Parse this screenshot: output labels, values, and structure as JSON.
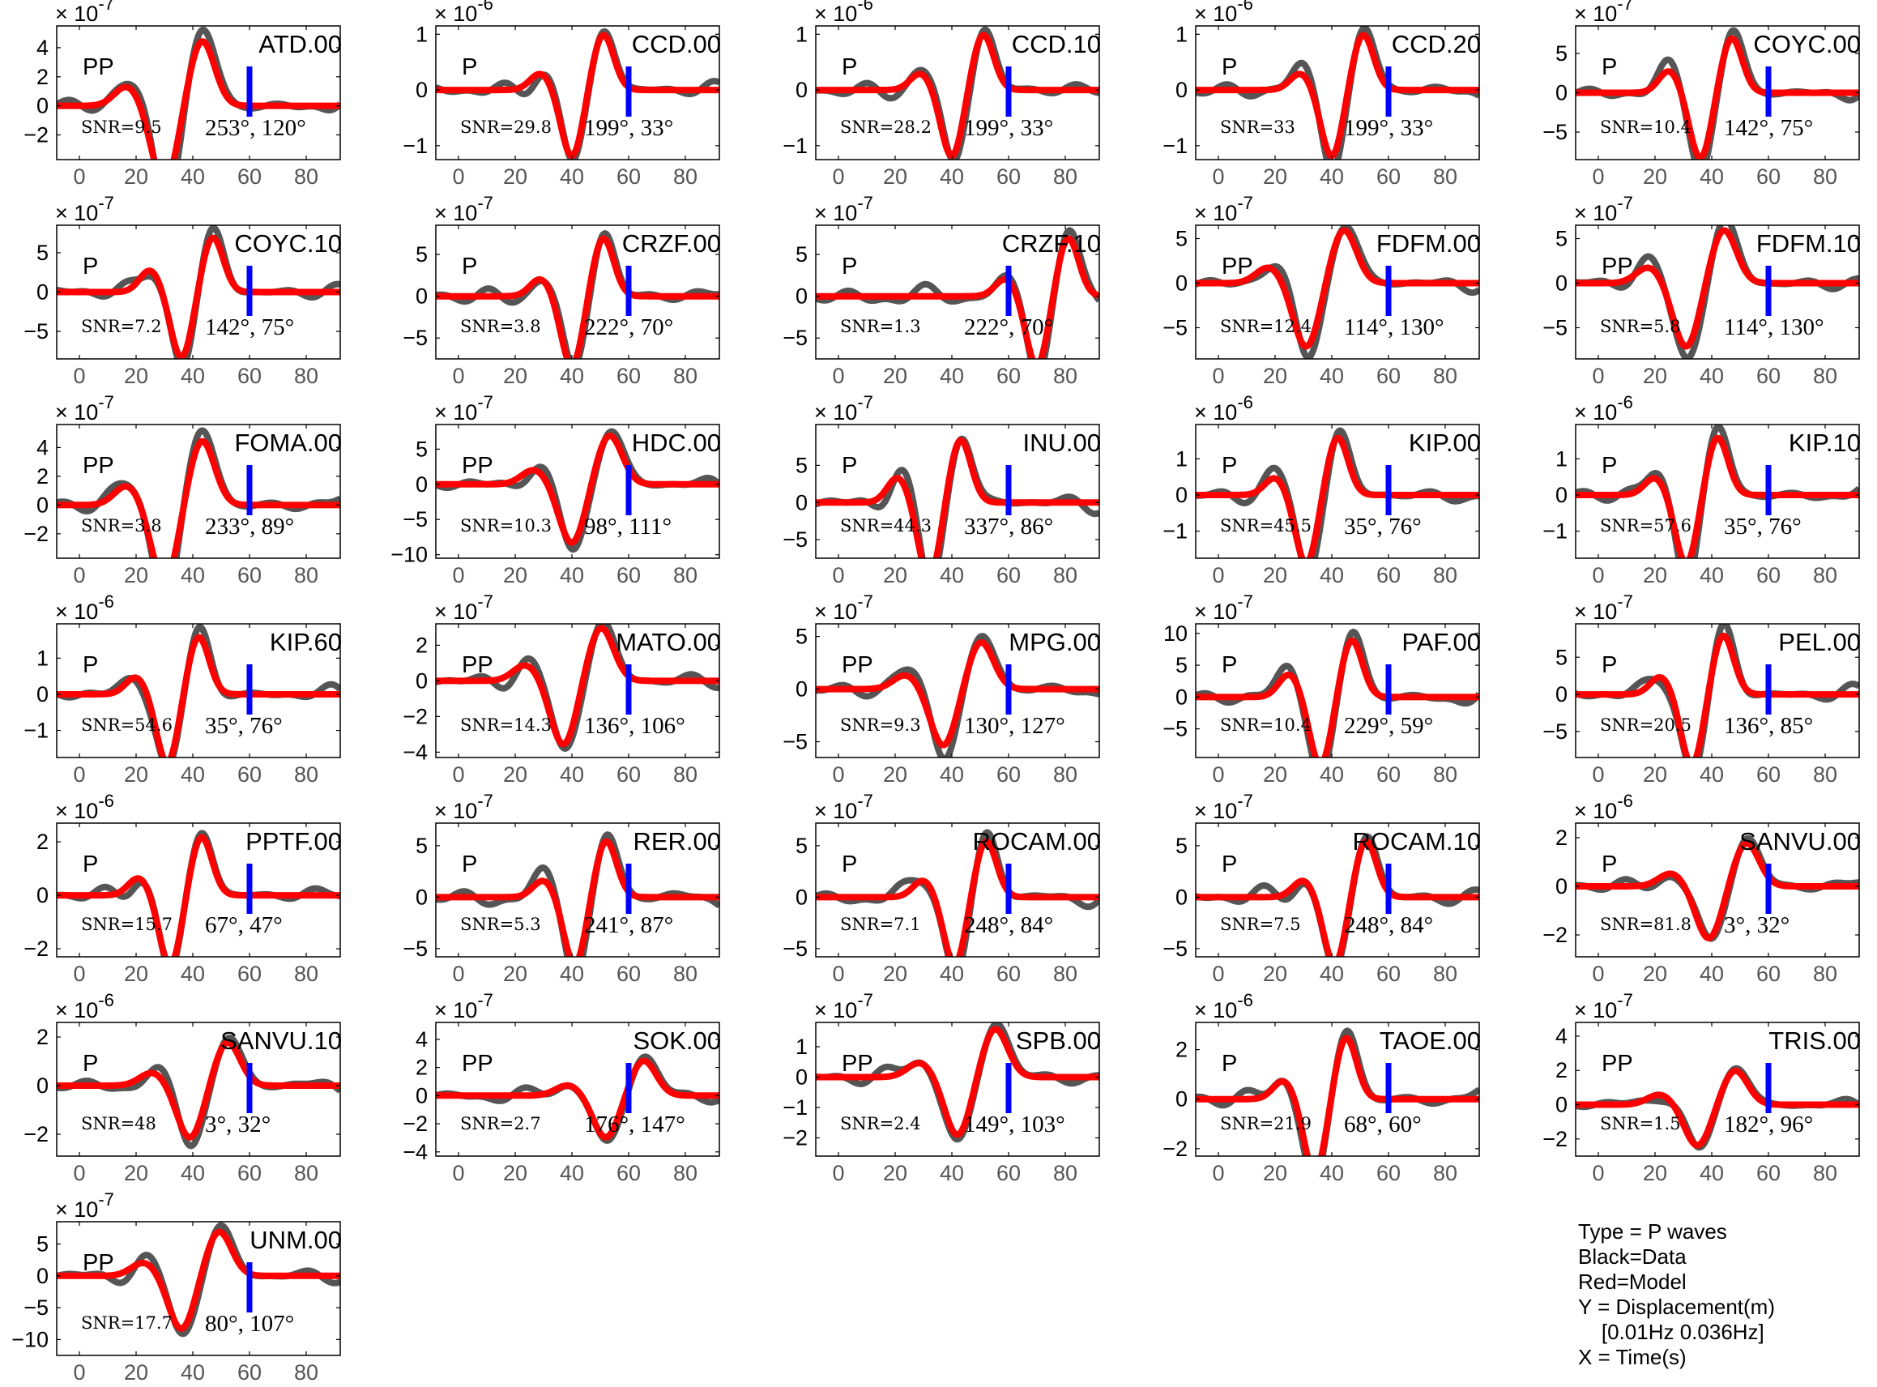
{
  "chart_data": {
    "type": "line",
    "xticks": [
      0,
      20,
      40,
      60,
      80
    ],
    "xlim": [
      -8,
      92
    ],
    "colors": {
      "data": "#555555",
      "model": "#ff0000",
      "marker": "#0000ff",
      "axis": "#000000",
      "tick_label": "#555555"
    },
    "panels": [
      {
        "station": "ATD.00",
        "phase": "PP",
        "snr": "SNR=9.5",
        "angles": "253°, 120°",
        "exponent": "-7",
        "yticks": [
          -2,
          0,
          2,
          4
        ],
        "ylim": [
          -3.7,
          5.5
        ],
        "pulse": {
          "t": 30,
          "w": 6,
          "lobe": 0.3,
          "amp": 4.5
        }
      },
      {
        "station": "CCD.00",
        "phase": "P",
        "snr": "SNR=29.8",
        "angles": "199°, 33°",
        "exponent": "-6",
        "yticks": [
          -1,
          0,
          1
        ],
        "ylim": [
          -1.25,
          1.15
        ],
        "pulse": {
          "t": 40,
          "w": 5,
          "lobe": 0.3,
          "amp": 1.0
        }
      },
      {
        "station": "CCD.10",
        "phase": "P",
        "snr": "SNR=28.2",
        "angles": "199°, 33°",
        "exponent": "-6",
        "yticks": [
          -1,
          0,
          1
        ],
        "ylim": [
          -1.25,
          1.15
        ],
        "pulse": {
          "t": 40,
          "w": 5,
          "lobe": 0.3,
          "amp": 1.0
        }
      },
      {
        "station": "CCD.20",
        "phase": "P",
        "snr": "SNR=33",
        "angles": "199°, 33°",
        "exponent": "-6",
        "yticks": [
          -1,
          0,
          1
        ],
        "ylim": [
          -1.25,
          1.15
        ],
        "pulse": {
          "t": 40,
          "w": 5,
          "lobe": 0.3,
          "amp": 1.0
        }
      },
      {
        "station": "COYC.00",
        "phase": "P",
        "snr": "SNR=10.4",
        "angles": "142°, 75°",
        "exponent": "-7",
        "yticks": [
          -5,
          0,
          5
        ],
        "ylim": [
          -8.5,
          8.5
        ],
        "pulse": {
          "t": 36,
          "w": 5,
          "lobe": 0.4,
          "amp": 7
        }
      },
      {
        "station": "COYC.10",
        "phase": "P",
        "snr": "SNR=7.2",
        "angles": "142°, 75°",
        "exponent": "-7",
        "yticks": [
          -5,
          0,
          5
        ],
        "ylim": [
          -8.5,
          8.5
        ],
        "pulse": {
          "t": 36,
          "w": 5,
          "lobe": 0.4,
          "amp": 7
        }
      },
      {
        "station": "CRZF.00",
        "phase": "P",
        "snr": "SNR=3.8",
        "angles": "222°, 70°",
        "exponent": "-7",
        "yticks": [
          -5,
          0,
          5
        ],
        "ylim": [
          -7.5,
          8.5
        ],
        "pulse": {
          "t": 40,
          "w": 5,
          "lobe": 0.3,
          "amp": 7
        }
      },
      {
        "station": "CRZF.10",
        "phase": "P",
        "snr": "SNR=1.3",
        "angles": "222°, 70°",
        "exponent": "-7",
        "yticks": [
          -5,
          0,
          5
        ],
        "ylim": [
          -7.5,
          8.5
        ],
        "pulse": {
          "t": 70,
          "w": 5,
          "lobe": 0.3,
          "amp": 7
        }
      },
      {
        "station": "FDFM.00",
        "phase": "PP",
        "snr": "SNR=12.4",
        "angles": "114°, 130°",
        "exponent": "-7",
        "yticks": [
          -5,
          0,
          5
        ],
        "ylim": [
          -8.5,
          6.5
        ],
        "pulse": {
          "t": 31,
          "w": 6,
          "lobe": 0.3,
          "amp": 6
        }
      },
      {
        "station": "FDFM.10",
        "phase": "PP",
        "snr": "SNR=5.8",
        "angles": "114°, 130°",
        "exponent": "-7",
        "yticks": [
          -5,
          0,
          5
        ],
        "ylim": [
          -8.5,
          6.5
        ],
        "pulse": {
          "t": 31,
          "w": 6,
          "lobe": 0.3,
          "amp": 6
        }
      },
      {
        "station": "FOMA.00",
        "phase": "PP",
        "snr": "SNR=3.8",
        "angles": "233°, 89°",
        "exponent": "-7",
        "yticks": [
          -2,
          0,
          2,
          4
        ],
        "ylim": [
          -3.7,
          5.6
        ],
        "pulse": {
          "t": 30,
          "w": 6,
          "lobe": 0.3,
          "amp": 4.5
        }
      },
      {
        "station": "HDC.00",
        "phase": "PP",
        "snr": "SNR=10.3",
        "angles": "98°, 111°",
        "exponent": "-7",
        "yticks": [
          -10,
          -5,
          0,
          5
        ],
        "ylim": [
          -10.5,
          8.5
        ],
        "pulse": {
          "t": 40,
          "w": 6,
          "lobe": 0.3,
          "amp": 7
        }
      },
      {
        "station": "INU.00",
        "phase": "P",
        "snr": "SNR=44.3",
        "angles": "337°, 86°",
        "exponent": "-7",
        "yticks": [
          -5,
          0,
          5
        ],
        "ylim": [
          -7.5,
          10.5
        ],
        "pulse": {
          "t": 32,
          "w": 5,
          "lobe": 0.4,
          "amp": 8.5
        }
      },
      {
        "station": "KIP.00",
        "phase": "P",
        "snr": "SNR=45.5",
        "angles": "35°, 76°",
        "exponent": "-6",
        "yticks": [
          -1,
          0,
          1
        ],
        "ylim": [
          -1.75,
          1.95
        ],
        "pulse": {
          "t": 31,
          "w": 5,
          "lobe": 0.3,
          "amp": 1.6
        }
      },
      {
        "station": "KIP.10",
        "phase": "P",
        "snr": "SNR=57.6",
        "angles": "35°, 76°",
        "exponent": "-6",
        "yticks": [
          -1,
          0,
          1
        ],
        "ylim": [
          -1.75,
          1.95
        ],
        "pulse": {
          "t": 31,
          "w": 5,
          "lobe": 0.3,
          "amp": 1.6
        }
      },
      {
        "station": "KIP.60",
        "phase": "P",
        "snr": "SNR=54.6",
        "angles": "35°, 76°",
        "exponent": "-6",
        "yticks": [
          -1,
          0,
          1
        ],
        "ylim": [
          -1.75,
          1.95
        ],
        "pulse": {
          "t": 31,
          "w": 5,
          "lobe": 0.3,
          "amp": 1.6
        }
      },
      {
        "station": "MATO.00",
        "phase": "PP",
        "snr": "SNR=14.3",
        "angles": "136°, 106°",
        "exponent": "-7",
        "yticks": [
          -4,
          -2,
          0,
          2
        ],
        "ylim": [
          -4.3,
          3.2
        ],
        "pulse": {
          "t": 37,
          "w": 6,
          "lobe": 0.3,
          "amp": 3.0
        }
      },
      {
        "station": "MPG.00",
        "phase": "PP",
        "snr": "SNR=9.3",
        "angles": "130°, 127°",
        "exponent": "-7",
        "yticks": [
          -5,
          0,
          5
        ],
        "ylim": [
          -6.5,
          6.2
        ],
        "pulse": {
          "t": 37,
          "w": 6,
          "lobe": 0.3,
          "amp": 4.5
        }
      },
      {
        "station": "PAF.00",
        "phase": "P",
        "snr": "SNR=10.4",
        "angles": "229°, 59°",
        "exponent": "-7",
        "yticks": [
          -5,
          0,
          5,
          10
        ],
        "ylim": [
          -9.5,
          11.5
        ],
        "pulse": {
          "t": 36,
          "w": 5,
          "lobe": 0.4,
          "amp": 9
        }
      },
      {
        "station": "PEL.00",
        "phase": "P",
        "snr": "SNR=20.5",
        "angles": "136°, 85°",
        "exponent": "-7",
        "yticks": [
          -5,
          0,
          5
        ],
        "ylim": [
          -8.5,
          9.5
        ],
        "pulse": {
          "t": 33,
          "w": 5,
          "lobe": 0.3,
          "amp": 8
        }
      },
      {
        "station": "PPTF.00",
        "phase": "P",
        "snr": "SNR=15.7",
        "angles": "67°, 47°",
        "exponent": "-6",
        "yticks": [
          -2,
          0,
          2
        ],
        "ylim": [
          -2.3,
          2.7
        ],
        "pulse": {
          "t": 32,
          "w": 5,
          "lobe": 0.3,
          "amp": 2.2
        }
      },
      {
        "station": "RER.00",
        "phase": "P",
        "snr": "SNR=5.3",
        "angles": "241°, 87°",
        "exponent": "-7",
        "yticks": [
          -5,
          0,
          5
        ],
        "ylim": [
          -5.8,
          7.2
        ],
        "pulse": {
          "t": 41,
          "w": 5,
          "lobe": 0.3,
          "amp": 5.5
        }
      },
      {
        "station": "ROCAM.00",
        "phase": "P",
        "snr": "SNR=7.1",
        "angles": "248°, 84°",
        "exponent": "-7",
        "yticks": [
          -5,
          0,
          5
        ],
        "ylim": [
          -5.8,
          7.2
        ],
        "pulse": {
          "t": 41,
          "w": 5,
          "lobe": 0.3,
          "amp": 5.5
        }
      },
      {
        "station": "ROCAM.10",
        "phase": "P",
        "snr": "SNR=7.5",
        "angles": "248°, 84°",
        "exponent": "-7",
        "yticks": [
          -5,
          0,
          5
        ],
        "ylim": [
          -5.8,
          7.2
        ],
        "pulse": {
          "t": 41,
          "w": 5,
          "lobe": 0.3,
          "amp": 5.5
        }
      },
      {
        "station": "SANVU.00",
        "phase": "P",
        "snr": "SNR=81.8",
        "angles": "3°, 32°",
        "exponent": "-6",
        "yticks": [
          -2,
          0,
          2
        ],
        "ylim": [
          -2.9,
          2.6
        ],
        "pulse": {
          "t": 39,
          "w": 6,
          "lobe": 0.3,
          "amp": 1.8
        }
      },
      {
        "station": "SANVU.10",
        "phase": "P",
        "snr": "SNR=48",
        "angles": "3°, 32°",
        "exponent": "-6",
        "yticks": [
          -2,
          0,
          2
        ],
        "ylim": [
          -2.9,
          2.6
        ],
        "pulse": {
          "t": 39,
          "w": 6,
          "lobe": 0.3,
          "amp": 1.8
        }
      },
      {
        "station": "SOK.00",
        "phase": "PP",
        "snr": "SNR=2.7",
        "angles": "176°, 147°",
        "exponent": "-7",
        "yticks": [
          -4,
          -2,
          0,
          2,
          4
        ],
        "ylim": [
          -4.3,
          5.2
        ],
        "pulse": {
          "t": 52,
          "w": 6,
          "lobe": 0.3,
          "amp": 2.5
        }
      },
      {
        "station": "SPB.00",
        "phase": "PP",
        "snr": "SNR=2.4",
        "angles": "149°, 103°",
        "exponent": "-7",
        "yticks": [
          -2,
          -1,
          0,
          1
        ],
        "ylim": [
          -2.6,
          1.8
        ],
        "pulse": {
          "t": 42,
          "w": 6,
          "lobe": 0.3,
          "amp": 1.6
        }
      },
      {
        "station": "TAOE.00",
        "phase": "P",
        "snr": "SNR=21.9",
        "angles": "68°, 60°",
        "exponent": "-6",
        "yticks": [
          -2,
          0,
          2
        ],
        "ylim": [
          -2.3,
          3.1
        ],
        "pulse": {
          "t": 34,
          "w": 5,
          "lobe": 0.3,
          "amp": 2.5
        }
      },
      {
        "station": "TRIS.00",
        "phase": "PP",
        "snr": "SNR=1.5",
        "angles": "182°, 96°",
        "exponent": "-7",
        "yticks": [
          -2,
          0,
          2,
          4
        ],
        "ylim": [
          -3.0,
          4.8
        ],
        "pulse": {
          "t": 35,
          "w": 6,
          "lobe": 0.3,
          "amp": 2.0
        }
      },
      {
        "station": "UNM.00",
        "phase": "PP",
        "snr": "SNR=17.7",
        "angles": "80°, 107°",
        "exponent": "-7",
        "yticks": [
          -10,
          -5,
          0,
          5
        ],
        "ylim": [
          -12.5,
          8.5
        ],
        "pulse": {
          "t": 36,
          "w": 6,
          "lobe": 0.3,
          "amp": 7
        }
      }
    ]
  },
  "legend": {
    "type": "Type = P waves",
    "black": "Black=Data",
    "red": "Red=Model",
    "y": "Y = Displacement(m)",
    "band": "    [0.01Hz 0.036Hz]",
    "x": "X = Time(s)"
  }
}
